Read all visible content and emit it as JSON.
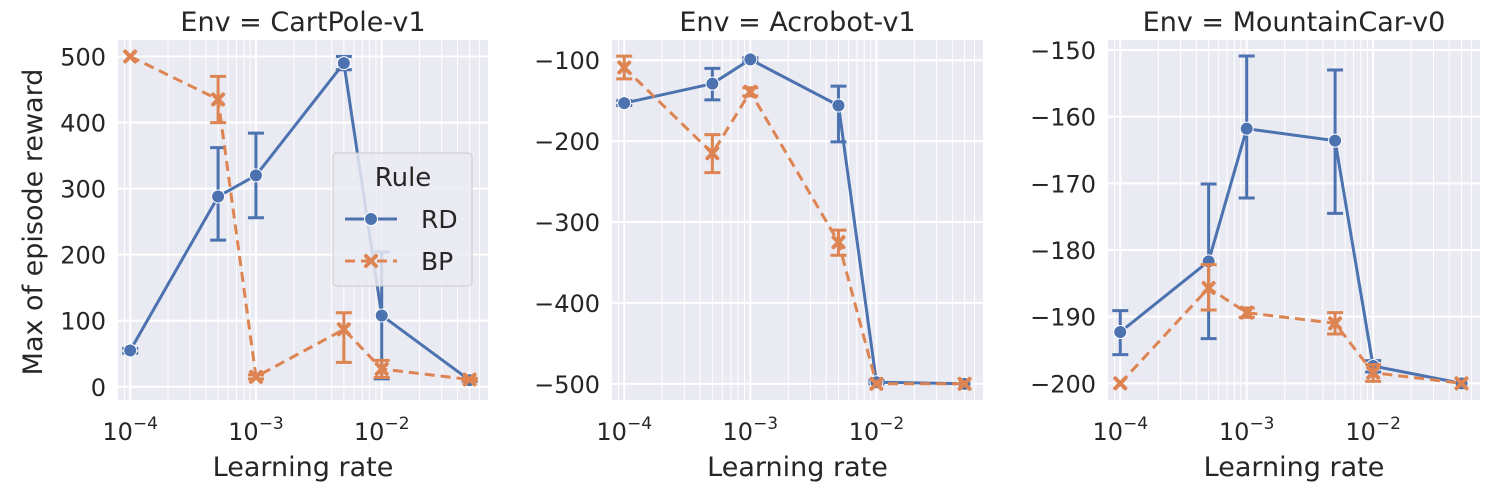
{
  "figure": {
    "xlabel": "Learning rate",
    "ylabel": "Max of episode reward",
    "xtick_base": "10",
    "colors": {
      "RD": "#4c72b0",
      "BP": "#dd8452",
      "panel_bg": "#eaeaf2",
      "grid": "#ffffff"
    }
  },
  "legend": {
    "title": "Rule",
    "entries": [
      {
        "label": "RD",
        "marker": "circle",
        "style": "solid"
      },
      {
        "label": "BP",
        "marker": "x",
        "style": "dashed"
      }
    ]
  },
  "chart_data": [
    {
      "type": "line",
      "title": "Env = CartPole-v1",
      "xscale": "log",
      "xlim": [
        8e-05,
        0.07
      ],
      "ylim": [
        -20,
        525
      ],
      "yticks": [
        0,
        100,
        200,
        300,
        400,
        500
      ],
      "xticks": [
        {
          "value": 0.0001,
          "exp": "−4"
        },
        {
          "value": 0.001,
          "exp": "−3"
        },
        {
          "value": 0.01,
          "exp": "−2"
        }
      ],
      "x": [
        0.0001,
        0.0005,
        0.001,
        0.005,
        0.01,
        0.05
      ],
      "series": [
        {
          "name": "RD",
          "values": [
            55,
            288,
            320,
            490,
            108,
            10
          ],
          "err_low": [
            51,
            222,
            256,
            480,
            12,
            8
          ],
          "err_high": [
            58,
            362,
            384,
            500,
            204,
            12
          ]
        },
        {
          "name": "BP",
          "values": [
            500,
            435,
            15,
            87,
            27,
            11
          ],
          "err_low": [
            500,
            400,
            12,
            37,
            14,
            9
          ],
          "err_high": [
            500,
            470,
            18,
            112,
            40,
            13
          ]
        }
      ]
    },
    {
      "type": "line",
      "title": "Env = Acrobot-v1",
      "xscale": "log",
      "xlim": [
        8e-05,
        0.07
      ],
      "ylim": [
        -520,
        -75
      ],
      "yticks": [
        -500,
        -400,
        -300,
        -200,
        -100
      ],
      "xticks": [
        {
          "value": 0.0001,
          "exp": "−4"
        },
        {
          "value": 0.001,
          "exp": "−3"
        },
        {
          "value": 0.01,
          "exp": "−2"
        }
      ],
      "x": [
        0.0001,
        0.0005,
        0.001,
        0.005,
        0.01,
        0.05
      ],
      "series": [
        {
          "name": "RD",
          "values": [
            -153,
            -129,
            -99,
            -156,
            -498,
            -500
          ],
          "err_low": [
            -156,
            -149,
            -101,
            -201,
            -500,
            -500
          ],
          "err_high": [
            -150,
            -110,
            -97,
            -132,
            -496,
            -500
          ]
        },
        {
          "name": "BP",
          "values": [
            -109,
            -215,
            -139,
            -325,
            -500,
            -500
          ],
          "err_low": [
            -123,
            -239,
            -144,
            -341,
            -500,
            -500
          ],
          "err_high": [
            -95,
            -192,
            -134,
            -310,
            -500,
            -500
          ]
        }
      ]
    },
    {
      "type": "line",
      "title": "Env = MountainCar-v0",
      "xscale": "log",
      "xlim": [
        8e-05,
        0.07
      ],
      "ylim": [
        -202.5,
        -148.5
      ],
      "yticks": [
        -200,
        -190,
        -180,
        -170,
        -160,
        -150
      ],
      "xticks": [
        {
          "value": 0.0001,
          "exp": "−4"
        },
        {
          "value": 0.001,
          "exp": "−3"
        },
        {
          "value": 0.01,
          "exp": "−2"
        }
      ],
      "x": [
        0.0001,
        0.0005,
        0.001,
        0.005,
        0.01,
        0.05
      ],
      "series": [
        {
          "name": "RD",
          "values": [
            -192.3,
            -181.7,
            -161.8,
            -163.6,
            -197.4,
            -200
          ],
          "err_low": [
            -195.7,
            -193.3,
            -172.2,
            -174.5,
            -198.3,
            -200
          ],
          "err_high": [
            -189.1,
            -170.1,
            -150.9,
            -153.0,
            -196.6,
            -200
          ]
        },
        {
          "name": "BP",
          "values": [
            -200,
            -185.7,
            -189.4,
            -191.0,
            -198.4,
            -200
          ],
          "err_low": [
            -200,
            -189.0,
            -190.1,
            -192.6,
            -199.7,
            -200
          ],
          "err_high": [
            -200,
            -182.2,
            -188.7,
            -189.4,
            -197.2,
            -200
          ]
        }
      ]
    }
  ]
}
